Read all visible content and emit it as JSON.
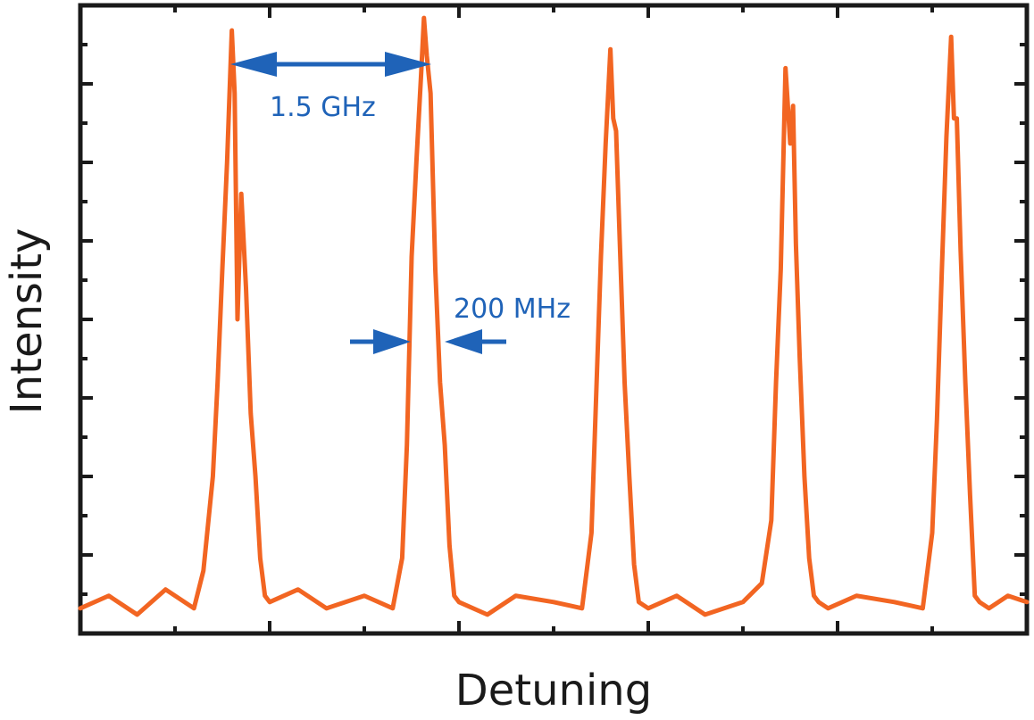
{
  "chart_data": {
    "type": "line",
    "title": "",
    "xlabel": "Detuning",
    "ylabel": "Intensity",
    "xlim": [
      0,
      1
    ],
    "ylim": [
      0,
      1
    ],
    "ticks_labeled": false,
    "grid": false,
    "legend": "none",
    "series": [
      {
        "color": "#f26522",
        "x": [
          0.0,
          0.03,
          0.06,
          0.09,
          0.12,
          0.13,
          0.14,
          0.145,
          0.15,
          0.155,
          0.16,
          0.163,
          0.166,
          0.17,
          0.175,
          0.18,
          0.185,
          0.19,
          0.195,
          0.2,
          0.23,
          0.26,
          0.3,
          0.33,
          0.34,
          0.345,
          0.35,
          0.355,
          0.36,
          0.363,
          0.366,
          0.37,
          0.375,
          0.38,
          0.385,
          0.39,
          0.395,
          0.4,
          0.43,
          0.46,
          0.5,
          0.53,
          0.54,
          0.545,
          0.55,
          0.555,
          0.56,
          0.563,
          0.566,
          0.57,
          0.575,
          0.58,
          0.585,
          0.59,
          0.6,
          0.63,
          0.66,
          0.7,
          0.72,
          0.73,
          0.735,
          0.74,
          0.745,
          0.75,
          0.753,
          0.756,
          0.76,
          0.765,
          0.77,
          0.775,
          0.78,
          0.79,
          0.82,
          0.86,
          0.89,
          0.9,
          0.905,
          0.91,
          0.915,
          0.92,
          0.923,
          0.926,
          0.93,
          0.935,
          0.94,
          0.945,
          0.95,
          0.96,
          0.98,
          1.0
        ],
        "y": [
          0.04,
          0.06,
          0.03,
          0.07,
          0.04,
          0.1,
          0.25,
          0.4,
          0.58,
          0.75,
          0.96,
          0.86,
          0.5,
          0.7,
          0.55,
          0.35,
          0.25,
          0.12,
          0.06,
          0.05,
          0.07,
          0.04,
          0.06,
          0.04,
          0.12,
          0.3,
          0.6,
          0.75,
          0.89,
          0.98,
          0.92,
          0.86,
          0.58,
          0.4,
          0.3,
          0.14,
          0.06,
          0.05,
          0.03,
          0.06,
          0.05,
          0.04,
          0.16,
          0.38,
          0.6,
          0.78,
          0.93,
          0.82,
          0.8,
          0.62,
          0.4,
          0.25,
          0.11,
          0.05,
          0.04,
          0.06,
          0.03,
          0.05,
          0.08,
          0.18,
          0.4,
          0.58,
          0.9,
          0.78,
          0.84,
          0.62,
          0.44,
          0.25,
          0.12,
          0.06,
          0.05,
          0.04,
          0.06,
          0.05,
          0.04,
          0.16,
          0.34,
          0.57,
          0.79,
          0.95,
          0.82,
          0.82,
          0.61,
          0.4,
          0.22,
          0.06,
          0.05,
          0.04,
          0.06,
          0.05
        ]
      }
    ],
    "annotations": [
      {
        "text": "1.5 GHz",
        "color": "#1f63b8"
      },
      {
        "text": "200 MHz",
        "color": "#1f63b8"
      }
    ]
  }
}
